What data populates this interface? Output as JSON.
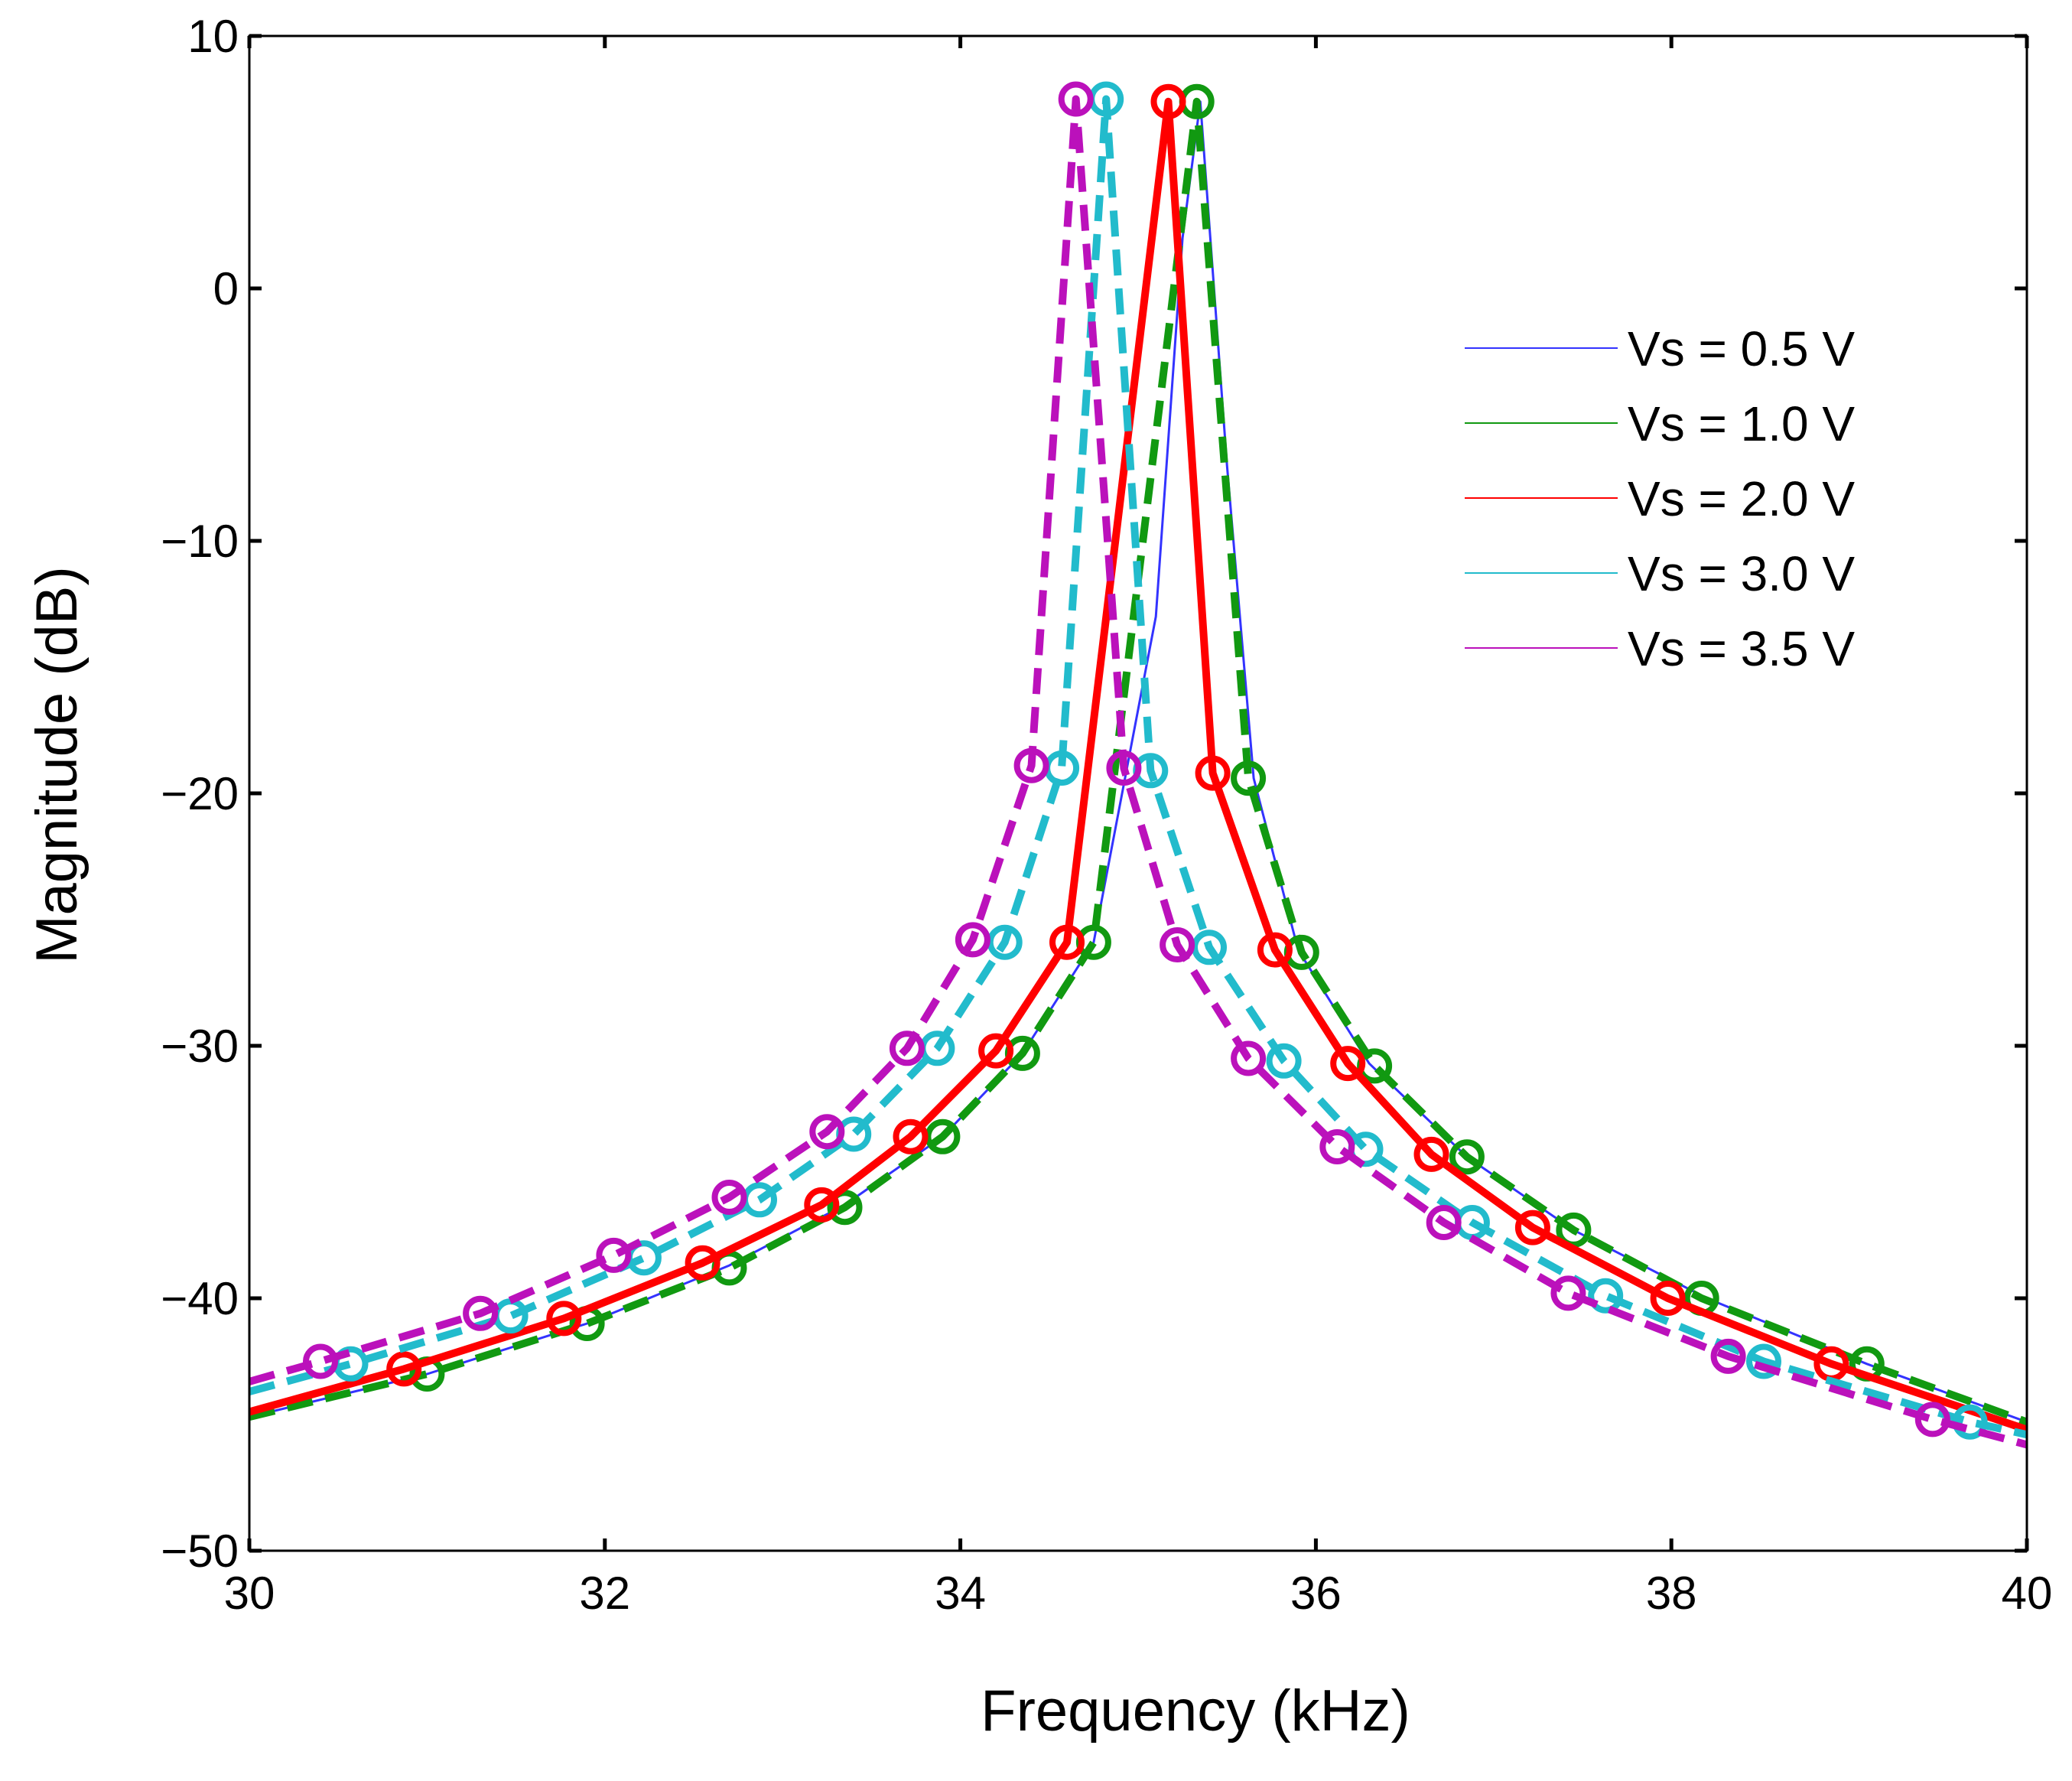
{
  "chart_data": {
    "type": "line",
    "title": "",
    "xlabel": "Frequency  (kHz)",
    "ylabel": "Magnitude (dB)",
    "xlim": [
      30,
      40
    ],
    "ylim": [
      -50,
      10
    ],
    "xticks": [
      30,
      32,
      34,
      36,
      38,
      40
    ],
    "yticks": [
      10,
      0,
      -10,
      -20,
      -30,
      -40,
      -50
    ],
    "xtick_labels": [
      "30",
      "32",
      "34",
      "36",
      "38",
      "40"
    ],
    "ytick_labels": [
      "10",
      "0",
      "−10",
      "−20",
      "−30",
      "−40",
      "−50"
    ],
    "grid": false,
    "legend_position": "top-right",
    "series": [
      {
        "name": "Vs = 0.5 V",
        "color": "#3333ff",
        "style": "thin-solid",
        "x": [
          30.0,
          31.0,
          31.9,
          32.7,
          33.35,
          33.9,
          34.35,
          34.75,
          35.1,
          35.25,
          35.35,
          35.5,
          35.65,
          35.9,
          36.3,
          36.85,
          37.45,
          38.2,
          39.1,
          40.0
        ],
        "y": [
          -44.7,
          -43.0,
          -41.0,
          -38.7,
          -36.3,
          -33.6,
          -30.3,
          -25.9,
          -13.0,
          2.0,
          7.4,
          -7.0,
          -19.4,
          -26.2,
          -30.7,
          -34.4,
          -37.3,
          -40.0,
          -42.6,
          -44.9
        ]
      },
      {
        "name": "Vs = 1.0 V",
        "color": "#119911",
        "style": "dashed-circle",
        "x": [
          30.0,
          31.0,
          31.9,
          32.7,
          33.35,
          33.9,
          34.35,
          34.75,
          35.33,
          35.62,
          35.92,
          36.33,
          36.85,
          37.45,
          38.17,
          39.1,
          40.0
        ],
        "y": [
          -44.7,
          -43.0,
          -41.0,
          -38.8,
          -36.4,
          -33.6,
          -30.3,
          -25.9,
          7.4,
          -19.4,
          -26.3,
          -30.8,
          -34.4,
          -37.3,
          -40.0,
          -42.6,
          -44.9
        ],
        "markers_x": [
          31.0,
          31.9,
          32.7,
          33.35,
          33.9,
          34.35,
          34.75,
          35.33,
          35.62,
          35.92,
          36.33,
          36.85,
          37.45,
          38.17,
          39.1
        ],
        "markers_y": [
          -43.0,
          -41.0,
          -38.8,
          -36.4,
          -33.6,
          -30.3,
          -25.9,
          7.4,
          -19.4,
          -26.3,
          -30.8,
          -34.4,
          -37.3,
          -40.0,
          -42.6
        ]
      },
      {
        "name": "Vs = 2.0 V",
        "color": "#ff0000",
        "style": "solid-circle",
        "x": [
          30.0,
          30.87,
          31.77,
          32.55,
          33.22,
          33.72,
          34.2,
          34.6,
          35.17,
          35.42,
          35.77,
          36.18,
          36.65,
          37.22,
          37.98,
          38.9,
          40.0
        ],
        "y": [
          -44.5,
          -42.8,
          -40.8,
          -38.6,
          -36.3,
          -33.6,
          -30.2,
          -25.9,
          7.4,
          -19.2,
          -26.2,
          -30.7,
          -34.3,
          -37.2,
          -40.0,
          -42.6,
          -45.2
        ],
        "markers_x": [
          30.87,
          31.77,
          32.55,
          33.22,
          33.72,
          34.2,
          34.6,
          35.17,
          35.42,
          35.77,
          36.18,
          36.65,
          37.22,
          37.98,
          38.9
        ],
        "markers_y": [
          -42.8,
          -40.8,
          -38.6,
          -36.3,
          -33.6,
          -30.2,
          -25.9,
          7.4,
          -19.2,
          -26.2,
          -30.7,
          -34.3,
          -37.2,
          -40.0,
          -42.6
        ]
      },
      {
        "name": "Vs = 3.0 V",
        "color": "#22bbcc",
        "style": "dashed-circle",
        "x": [
          30.0,
          30.57,
          31.47,
          32.22,
          32.87,
          33.4,
          33.87,
          34.25,
          34.57,
          34.82,
          35.07,
          35.4,
          35.82,
          36.28,
          36.88,
          37.63,
          38.52,
          39.68,
          40.0
        ],
        "y": [
          -43.7,
          -42.6,
          -40.7,
          -38.4,
          -36.1,
          -33.5,
          -30.1,
          -25.9,
          -19.0,
          7.5,
          -19.1,
          -26.1,
          -30.6,
          -34.1,
          -37.0,
          -39.9,
          -42.5,
          -44.9,
          -45.4
        ],
        "markers_x": [
          30.57,
          31.47,
          32.22,
          32.87,
          33.4,
          33.87,
          34.25,
          34.57,
          34.82,
          35.07,
          35.4,
          35.82,
          36.28,
          36.88,
          37.63,
          38.52,
          39.68
        ],
        "markers_y": [
          -42.6,
          -40.7,
          -38.4,
          -36.1,
          -33.5,
          -30.1,
          -25.9,
          -19.0,
          7.5,
          -19.1,
          -26.1,
          -30.6,
          -34.1,
          -37.0,
          -39.9,
          -42.5,
          -44.9
        ]
      },
      {
        "name": "Vs = 3.5 V",
        "color": "#bb11bb",
        "style": "dashed-circle",
        "x": [
          30.0,
          30.4,
          31.3,
          32.05,
          32.7,
          33.25,
          33.7,
          34.07,
          34.4,
          34.65,
          34.92,
          35.22,
          35.62,
          36.12,
          36.72,
          37.42,
          38.32,
          39.47,
          40.0
        ],
        "y": [
          -43.3,
          -42.5,
          -40.6,
          -38.3,
          -36.0,
          -33.4,
          -30.1,
          -25.8,
          -18.9,
          7.5,
          -19.0,
          -26.0,
          -30.5,
          -34.0,
          -37.0,
          -39.8,
          -42.3,
          -44.8,
          -45.8
        ],
        "markers_x": [
          30.4,
          31.3,
          32.05,
          32.7,
          33.25,
          33.7,
          34.07,
          34.4,
          34.65,
          34.92,
          35.22,
          35.62,
          36.12,
          36.72,
          37.42,
          38.32,
          39.47
        ],
        "markers_y": [
          -42.5,
          -40.6,
          -38.3,
          -36.0,
          -33.4,
          -30.1,
          -25.8,
          -18.9,
          7.5,
          -19.0,
          -26.0,
          -30.5,
          -34.0,
          -37.0,
          -39.8,
          -42.3,
          -44.8
        ]
      }
    ]
  }
}
